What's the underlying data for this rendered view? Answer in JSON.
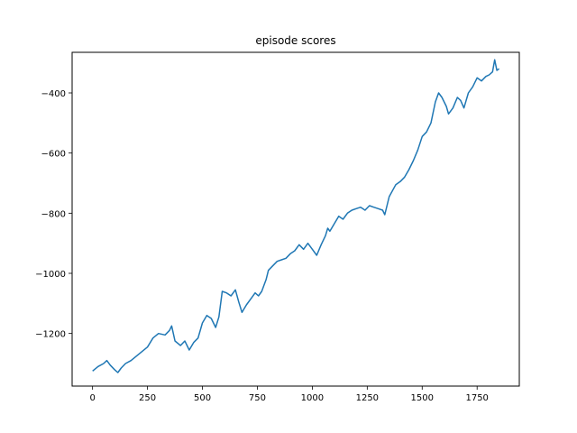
{
  "chart_data": {
    "type": "line",
    "title": "episode scores",
    "xlabel": "",
    "ylabel": "",
    "xlim": [
      -93,
      1942
    ],
    "ylim": [
      -1375,
      -265
    ],
    "grid": false,
    "legend": "none",
    "x_ticks": [
      0,
      250,
      500,
      750,
      1000,
      1250,
      1500,
      1750
    ],
    "x_tick_labels": [
      "0",
      "250",
      "500",
      "750",
      "1000",
      "1250",
      "1500",
      "1750"
    ],
    "y_ticks": [
      -1200,
      -1000,
      -800,
      -600,
      -400
    ],
    "y_tick_labels": [
      "−1200",
      "−1000",
      "−800",
      "−600",
      "−400"
    ],
    "series": [
      {
        "color": "#1f77b4",
        "x": [
          0,
          25,
          50,
          65,
          80,
          100,
          115,
          130,
          150,
          175,
          200,
          225,
          250,
          275,
          300,
          330,
          350,
          360,
          375,
          400,
          420,
          440,
          460,
          480,
          500,
          520,
          540,
          560,
          575,
          590,
          610,
          630,
          650,
          665,
          680,
          700,
          720,
          740,
          755,
          770,
          790,
          800,
          820,
          840,
          860,
          880,
          900,
          920,
          940,
          960,
          980,
          1000,
          1020,
          1040,
          1060,
          1070,
          1080,
          1100,
          1120,
          1140,
          1160,
          1180,
          1200,
          1220,
          1240,
          1260,
          1280,
          1300,
          1320,
          1330,
          1350,
          1380,
          1400,
          1420,
          1440,
          1460,
          1480,
          1500,
          1520,
          1540,
          1560,
          1575,
          1590,
          1610,
          1620,
          1640,
          1660,
          1675,
          1690,
          1710,
          1730,
          1750,
          1770,
          1790,
          1805,
          1820,
          1830,
          1840,
          1850
        ],
        "y": [
          -1325,
          -1310,
          -1300,
          -1290,
          -1305,
          -1320,
          -1330,
          -1315,
          -1300,
          -1290,
          -1275,
          -1260,
          -1245,
          -1215,
          -1200,
          -1205,
          -1190,
          -1175,
          -1225,
          -1240,
          -1225,
          -1255,
          -1230,
          -1215,
          -1165,
          -1140,
          -1150,
          -1180,
          -1145,
          -1060,
          -1065,
          -1075,
          -1055,
          -1095,
          -1130,
          -1105,
          -1085,
          -1065,
          -1075,
          -1060,
          -1020,
          -990,
          -975,
          -960,
          -955,
          -950,
          -935,
          -925,
          -905,
          -920,
          -900,
          -920,
          -940,
          -905,
          -875,
          -850,
          -860,
          -835,
          -810,
          -820,
          -800,
          -790,
          -785,
          -780,
          -790,
          -775,
          -780,
          -785,
          -790,
          -805,
          -745,
          -705,
          -695,
          -680,
          -655,
          -625,
          -590,
          -545,
          -530,
          -500,
          -430,
          -400,
          -415,
          -445,
          -470,
          -450,
          -415,
          -425,
          -450,
          -400,
          -380,
          -350,
          -360,
          -345,
          -340,
          -330,
          -290,
          -325,
          -320
        ]
      }
    ]
  }
}
